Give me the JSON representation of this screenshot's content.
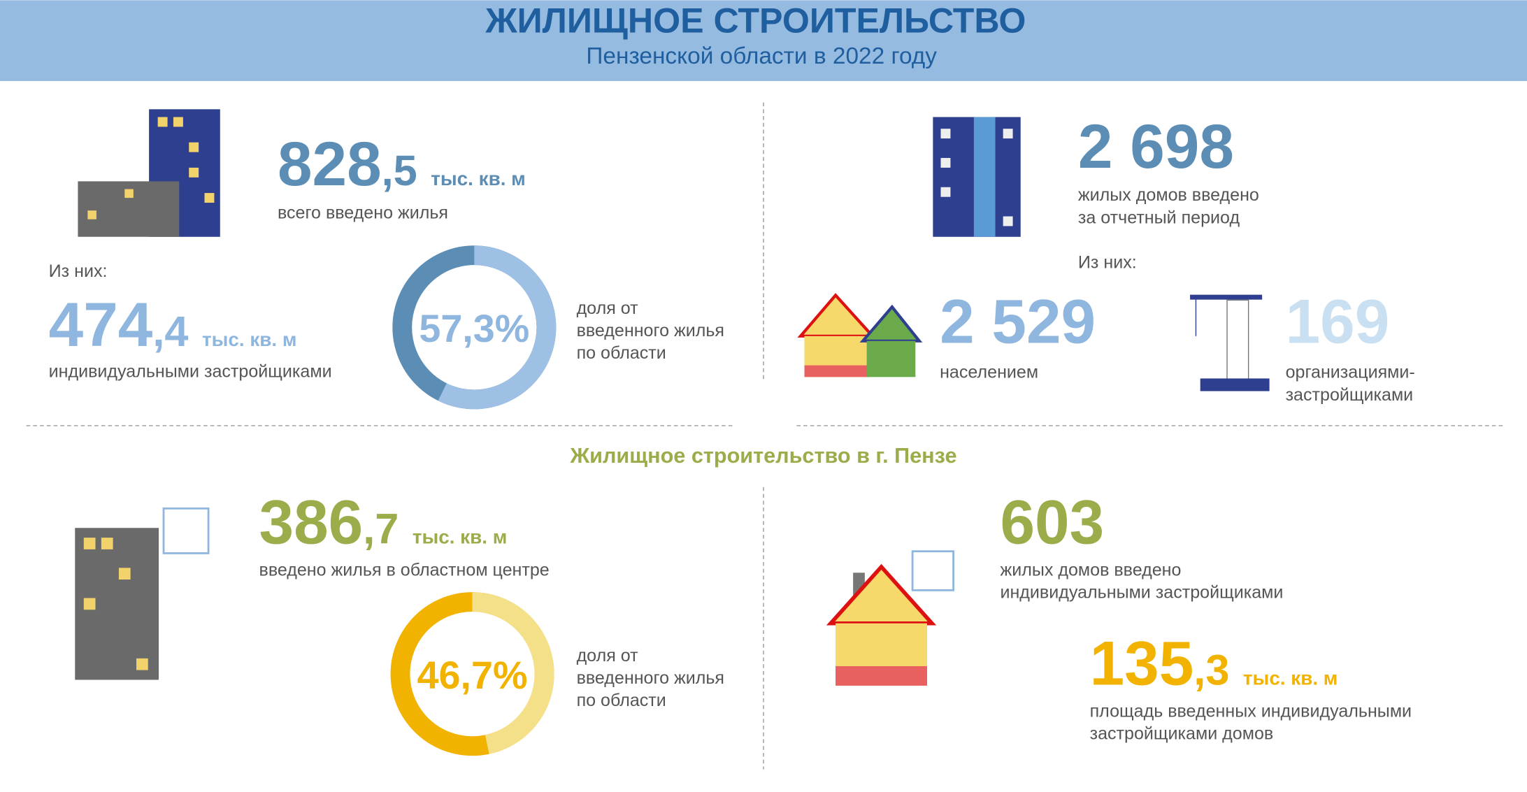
{
  "header": {
    "title": "ЖИЛИЩНОЕ СТРОИТЕЛЬСТВО",
    "subtitle": "Пензенской области в 2022 году"
  },
  "region": {
    "total": {
      "int": "828",
      "frac": ",5",
      "unit": "тыс. кв. м",
      "caption": [
        "всего введено жилья"
      ]
    },
    "of_them": "Из них:",
    "individual": {
      "int": "474",
      "frac": ",4",
      "unit": "тыс. кв. м",
      "caption": [
        "индивидуальными застройщиками"
      ]
    },
    "share": {
      "value": 57.3,
      "label": "57,3%",
      "caption": [
        "доля от",
        "введенного жилья",
        "по области"
      ]
    },
    "houses": {
      "number": "2 698",
      "caption": [
        "жилых домов введено",
        "за отчетный период"
      ]
    },
    "houses_of_them": "Из них:",
    "population": {
      "number": "2 529",
      "caption": [
        "населением"
      ]
    },
    "developers": {
      "number": "169",
      "caption": [
        "организациями-",
        "застройщиками"
      ]
    }
  },
  "city": {
    "title": "Жилищное строительство в г. Пензе",
    "area": {
      "int": "386",
      "frac": ",7",
      "unit": "тыс. кв. м",
      "caption": [
        "введено жилья в областном центре"
      ]
    },
    "share": {
      "value": 46.7,
      "label": "46,7%",
      "caption": [
        "доля от",
        "введенного жилья",
        "по области"
      ]
    },
    "houses": {
      "number": "603",
      "caption": [
        "жилых домов введено",
        "индивидуальными застройщиками"
      ]
    },
    "individual_area": {
      "int": "135",
      "frac": ",3",
      "unit": "тыс. кв. м",
      "caption": [
        "площадь введенных индивидуальными",
        "застройщиками домов"
      ]
    }
  }
}
